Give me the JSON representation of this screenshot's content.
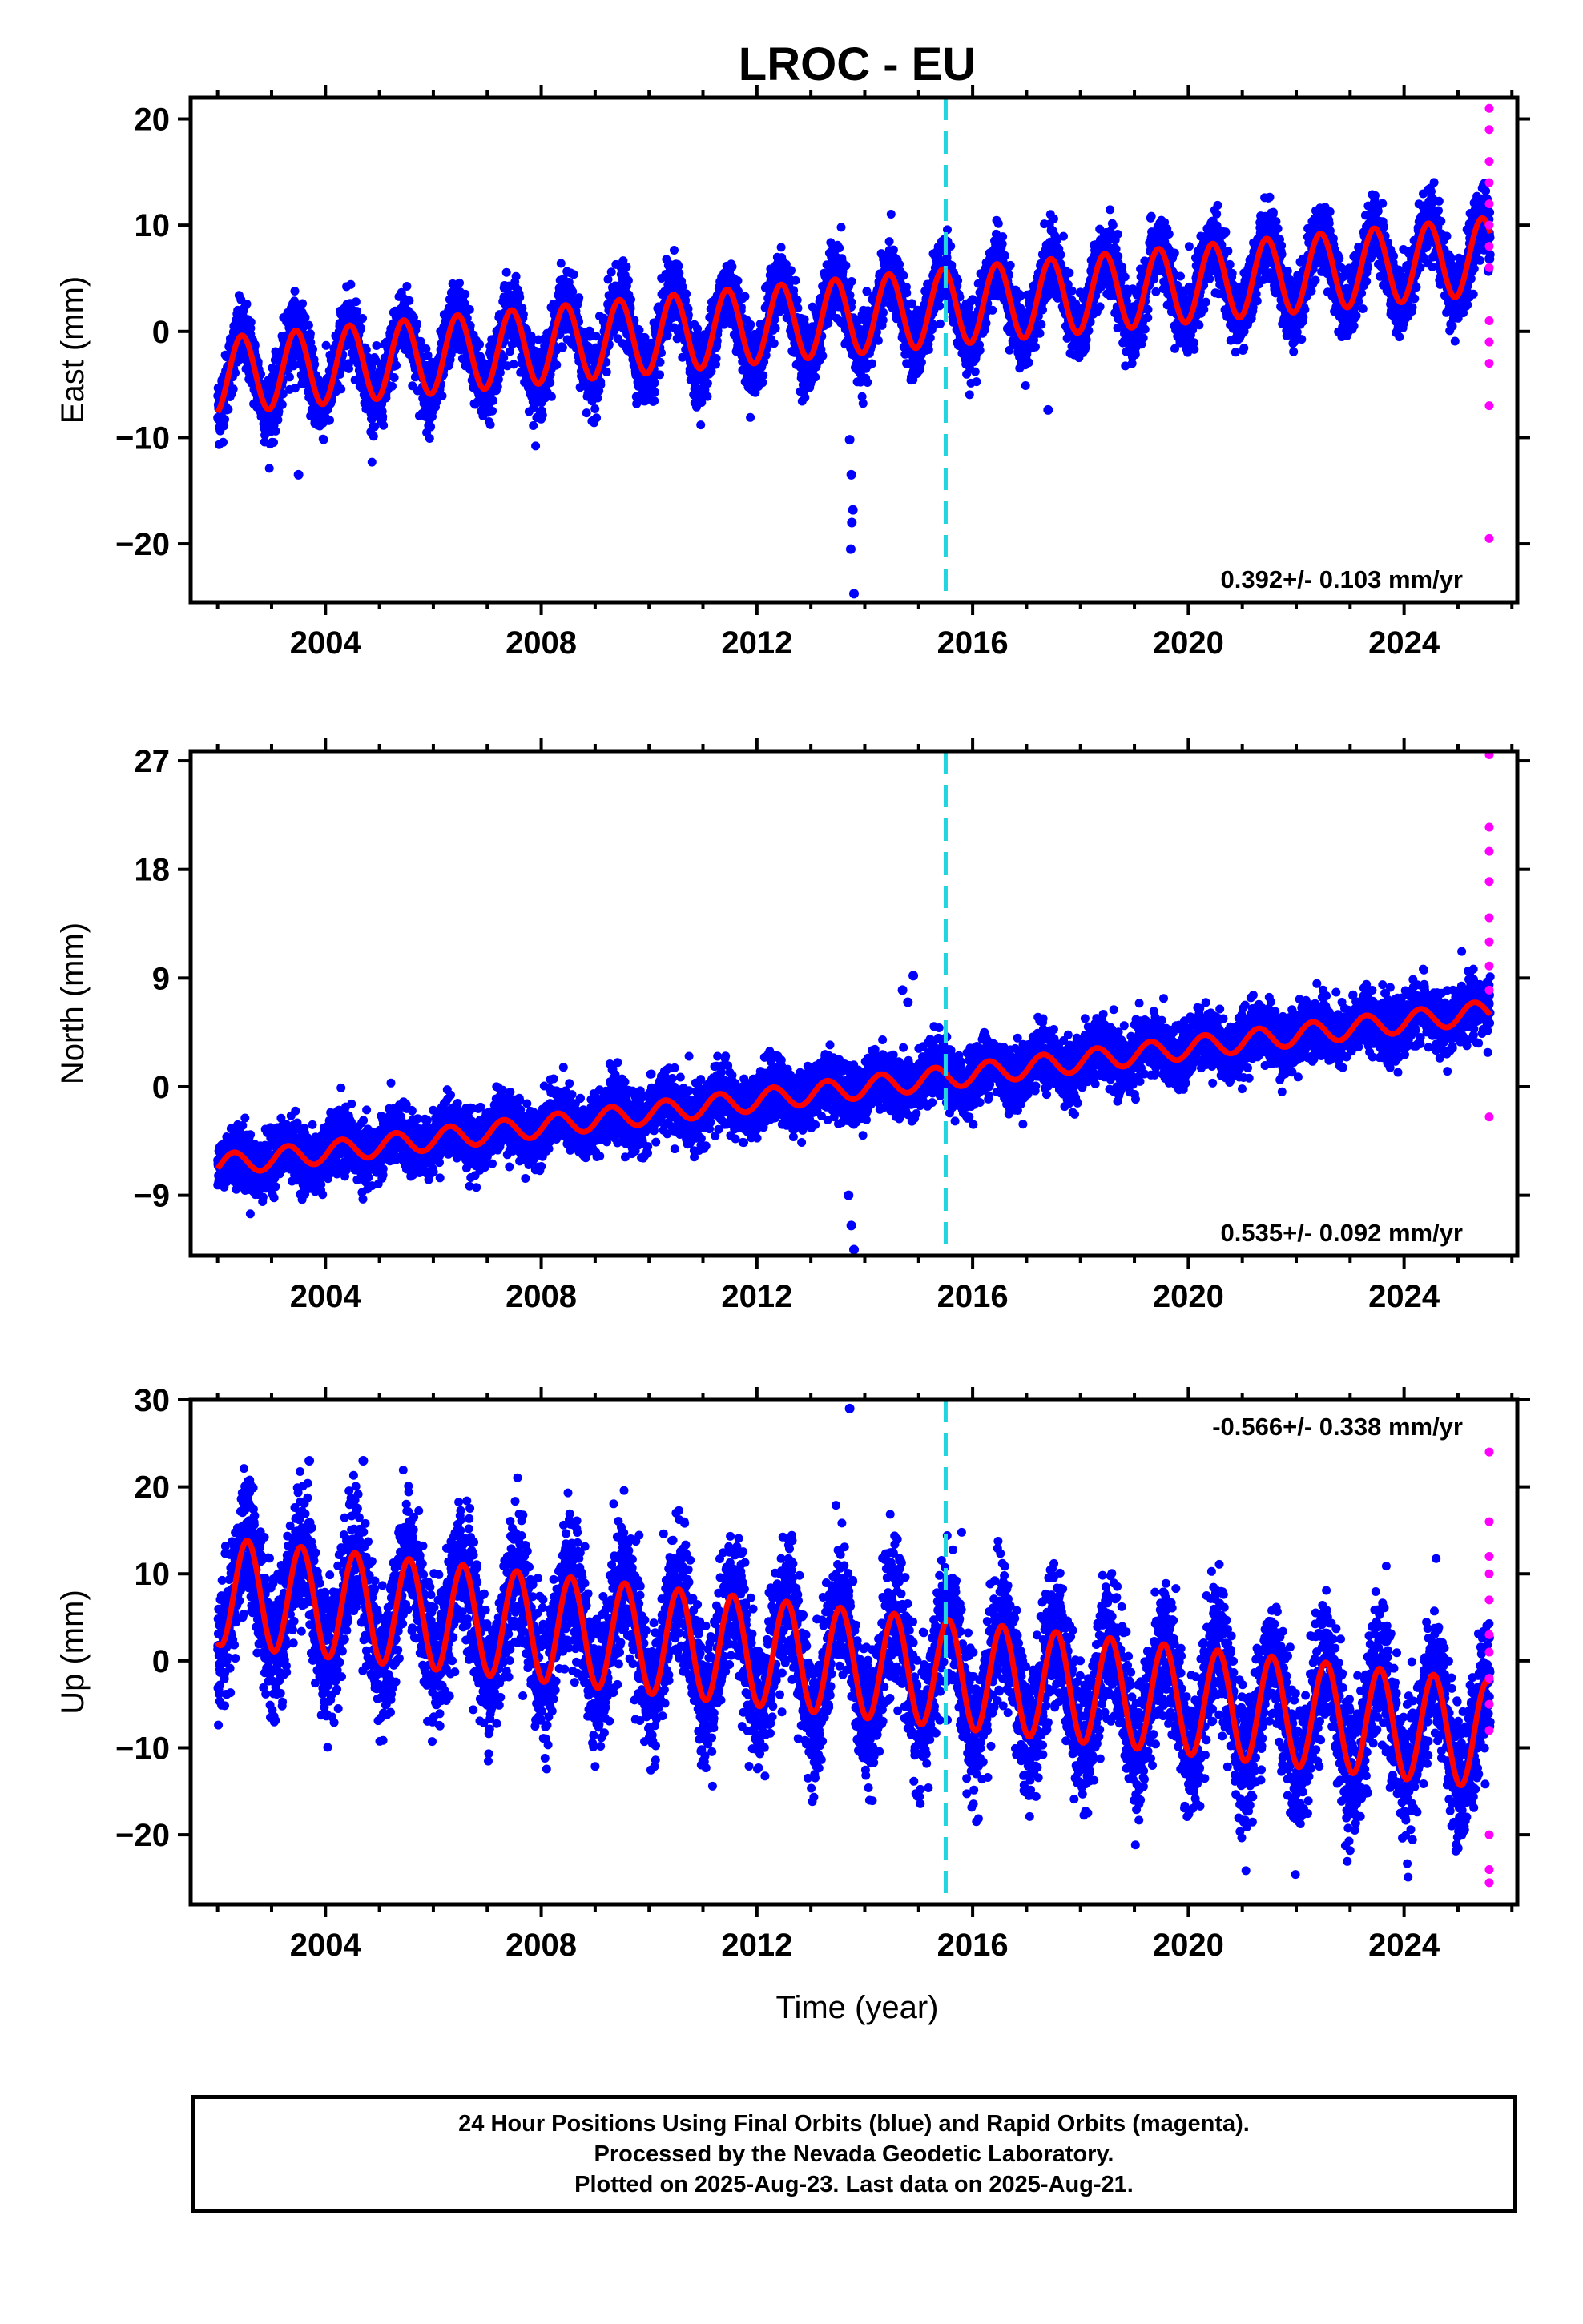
{
  "chart_data": {
    "type": "scatter",
    "title": "LROC - EU",
    "xlabel": "Time (year)",
    "xlim": [
      2001.5,
      2026.1
    ],
    "x_ticks": [
      2004,
      2008,
      2012,
      2016,
      2020,
      2024
    ],
    "vertical_line": {
      "x": 2015.5,
      "color": "#22d3e0",
      "style": "dashed"
    },
    "colors": {
      "final": "#0000ff",
      "rapid": "#ff00ff",
      "model": "#ff0000"
    },
    "panels": [
      {
        "ylabel": "East (mm)",
        "ylim": [
          -25.5,
          22
        ],
        "y_ticks": [
          -20,
          -10,
          0,
          10,
          20
        ],
        "rate_text": "0.392+/- 0.103 mm/yr",
        "rate_position": "bottom-right",
        "model": {
          "start": 2002.0,
          "end": 2025.6,
          "offset_at_start": -4.2,
          "trend_mm_per_yr": 0.48,
          "amplitude": 3.6,
          "peak_phase": 0.45
        },
        "scatter_sd": 1.6,
        "outliers": [
          {
            "x": 2013.72,
            "y": -10.2
          },
          {
            "x": 2013.75,
            "y": -13.5
          },
          {
            "x": 2013.78,
            "y": -16.8
          },
          {
            "x": 2013.76,
            "y": -18.0
          },
          {
            "x": 2013.74,
            "y": -20.5
          },
          {
            "x": 2013.8,
            "y": -24.7
          },
          {
            "x": 2003.5,
            "y": -13.5
          },
          {
            "x": 2017.4,
            "y": -7.4
          }
        ],
        "rapid_points": [
          {
            "x": 2025.58,
            "y": 21.0
          },
          {
            "x": 2025.58,
            "y": 19.0
          },
          {
            "x": 2025.58,
            "y": 16.0
          },
          {
            "x": 2025.58,
            "y": 14.0
          },
          {
            "x": 2025.58,
            "y": 12.0
          },
          {
            "x": 2025.58,
            "y": 10.0
          },
          {
            "x": 2025.58,
            "y": 8.0
          },
          {
            "x": 2025.58,
            "y": 6.0
          },
          {
            "x": 2025.58,
            "y": 1.0
          },
          {
            "x": 2025.58,
            "y": -1.0
          },
          {
            "x": 2025.58,
            "y": -3.0
          },
          {
            "x": 2025.58,
            "y": -7.0
          },
          {
            "x": 2025.58,
            "y": -19.5
          }
        ]
      },
      {
        "ylabel": "North (mm)",
        "ylim": [
          -14,
          27.8
        ],
        "y_ticks": [
          -9,
          0,
          9,
          18,
          27
        ],
        "rate_text": "0.535+/- 0.092 mm/yr",
        "rate_position": "bottom-right",
        "model": {
          "start": 2002.0,
          "end": 2025.6,
          "offset_at_start": -6.5,
          "trend_mm_per_yr": 0.54,
          "amplitude": 0.9,
          "peak_phase": 0.3
        },
        "scatter_sd": 1.2,
        "outliers": [
          {
            "x": 2013.7,
            "y": -9.0
          },
          {
            "x": 2013.75,
            "y": -11.5
          },
          {
            "x": 2013.8,
            "y": -13.5
          },
          {
            "x": 2014.9,
            "y": 9.2
          },
          {
            "x": 2014.7,
            "y": 8.0
          },
          {
            "x": 2014.8,
            "y": 7.0
          }
        ],
        "rapid_points": [
          {
            "x": 2025.58,
            "y": 27.5
          },
          {
            "x": 2025.58,
            "y": 21.5
          },
          {
            "x": 2025.58,
            "y": 19.5
          },
          {
            "x": 2025.58,
            "y": 17.0
          },
          {
            "x": 2025.58,
            "y": 14.0
          },
          {
            "x": 2025.58,
            "y": 12.0
          },
          {
            "x": 2025.58,
            "y": 10.0
          },
          {
            "x": 2025.58,
            "y": 8.0
          },
          {
            "x": 2025.58,
            "y": -2.5
          }
        ]
      },
      {
        "ylabel": "Up (mm)",
        "ylim": [
          -28,
          30
        ],
        "y_ticks": [
          -20,
          -10,
          0,
          10,
          20,
          30
        ],
        "rate_text": "-0.566+/- 0.338 mm/yr",
        "rate_position": "top-right",
        "model": {
          "start": 2002.0,
          "end": 2025.6,
          "offset_at_start": 8.0,
          "trend_mm_per_yr": -0.7,
          "amplitude": 6.2,
          "peak_phase": 0.55
        },
        "scatter_sd": 3.8,
        "outliers": [
          {
            "x": 2013.72,
            "y": 29.0
          },
          {
            "x": 2003.7,
            "y": 23.0
          },
          {
            "x": 2004.7,
            "y": 23.0
          }
        ],
        "rapid_points": [
          {
            "x": 2025.58,
            "y": 24.0
          },
          {
            "x": 2025.58,
            "y": 16.0
          },
          {
            "x": 2025.58,
            "y": 12.0
          },
          {
            "x": 2025.58,
            "y": 10.0
          },
          {
            "x": 2025.58,
            "y": 7.0
          },
          {
            "x": 2025.58,
            "y": 3.0
          },
          {
            "x": 2025.58,
            "y": 1.0
          },
          {
            "x": 2025.58,
            "y": -2.0
          },
          {
            "x": 2025.58,
            "y": -5.0
          },
          {
            "x": 2025.58,
            "y": -8.0
          },
          {
            "x": 2025.58,
            "y": -20.0
          },
          {
            "x": 2025.58,
            "y": -24.0
          },
          {
            "x": 2025.58,
            "y": -25.5
          }
        ]
      }
    ]
  },
  "footer": {
    "line1": "24 Hour Positions Using Final Orbits (blue) and Rapid Orbits (magenta).",
    "line2": "Processed by the Nevada Geodetic Laboratory.",
    "line3": "Plotted on 2025-Aug-23. Last data on 2025-Aug-21."
  }
}
